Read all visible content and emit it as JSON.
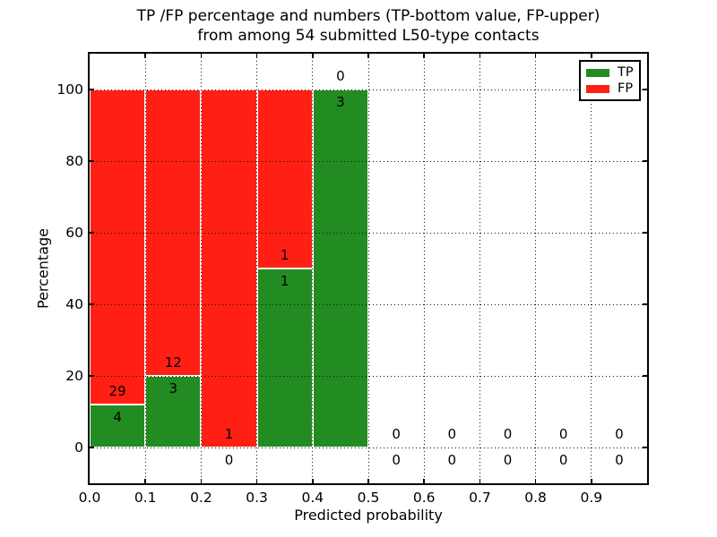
{
  "title": {
    "line1": "TP /FP percentage and numbers (TP-bottom value, FP-upper)",
    "line2": "from among 54 submitted L50-type contacts"
  },
  "legend": {
    "items": [
      {
        "label": "TP",
        "color": "#228b22"
      },
      {
        "label": "FP",
        "color": "#ff1f14"
      }
    ]
  },
  "chart_data": {
    "type": "bar",
    "stacked": true,
    "title": "TP /FP percentage and numbers (TP-bottom value, FP-upper) from among 54 submitted L50-type contacts",
    "xlabel": "Predicted probability",
    "ylabel": "Percentage",
    "xlim": [
      0.0,
      1.0
    ],
    "ylim": [
      -10,
      110
    ],
    "x_tick_labels": [
      "0.0",
      "0.1",
      "0.2",
      "0.3",
      "0.4",
      "0.5",
      "0.6",
      "0.7",
      "0.8",
      "0.9"
    ],
    "y_tick_values": [
      0,
      20,
      40,
      60,
      80,
      100
    ],
    "grid": "dotted, both axes, drawn over bars",
    "legend_position": "upper right",
    "bar_colors": {
      "tp": "#228b22",
      "fp": "#ff1f14",
      "edge": "#ffffff"
    },
    "bins": [
      {
        "x_start": 0.0,
        "x_end": 0.1,
        "tp_count": 4,
        "fp_count": 29,
        "tp_pct": 12.1,
        "fp_pct": 87.9
      },
      {
        "x_start": 0.1,
        "x_end": 0.2,
        "tp_count": 3,
        "fp_count": 12,
        "tp_pct": 20.0,
        "fp_pct": 80.0
      },
      {
        "x_start": 0.2,
        "x_end": 0.3,
        "tp_count": 0,
        "fp_count": 1,
        "tp_pct": 0.0,
        "fp_pct": 100.0
      },
      {
        "x_start": 0.3,
        "x_end": 0.4,
        "tp_count": 1,
        "fp_count": 1,
        "tp_pct": 50.0,
        "fp_pct": 50.0
      },
      {
        "x_start": 0.4,
        "x_end": 0.5,
        "tp_count": 3,
        "fp_count": 0,
        "tp_pct": 100.0,
        "fp_pct": 0.0
      },
      {
        "x_start": 0.5,
        "x_end": 0.6,
        "tp_count": 0,
        "fp_count": 0,
        "tp_pct": 0.0,
        "fp_pct": 0.0
      },
      {
        "x_start": 0.6,
        "x_end": 0.7,
        "tp_count": 0,
        "fp_count": 0,
        "tp_pct": 0.0,
        "fp_pct": 0.0
      },
      {
        "x_start": 0.7,
        "x_end": 0.8,
        "tp_count": 0,
        "fp_count": 0,
        "tp_pct": 0.0,
        "fp_pct": 0.0
      },
      {
        "x_start": 0.8,
        "x_end": 0.9,
        "tp_count": 0,
        "fp_count": 0,
        "tp_pct": 0.0,
        "fp_pct": 0.0
      },
      {
        "x_start": 0.9,
        "x_end": 1.0,
        "tp_count": 0,
        "fp_count": 0,
        "tp_pct": 0.0,
        "fp_pct": 0.0
      }
    ]
  }
}
